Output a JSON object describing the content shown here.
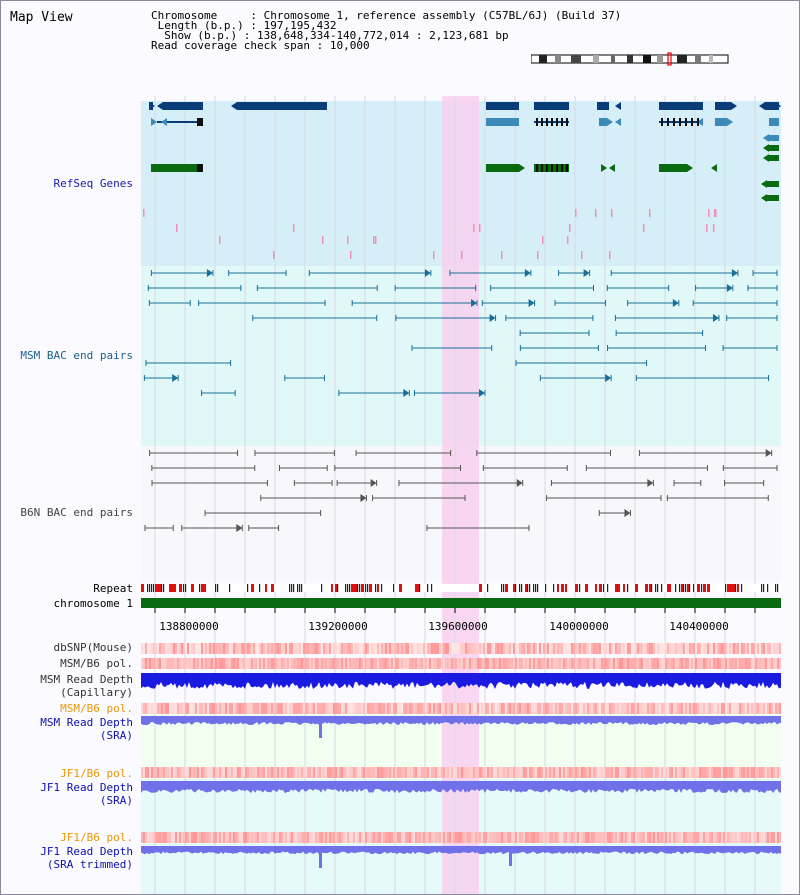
{
  "title": "Map View",
  "info": [
    {
      "key": "Chromosome     ",
      "value": "Chromosome 1, reference assembly (C57BL/6J) (Build 37)"
    },
    {
      "key": " Length (b.p.) ",
      "value": "197,195,432"
    },
    {
      "key": "  Show (b.p.) ",
      "value": "138,648,334-140,772,014 : 2,123,681 bp"
    },
    {
      "key": "Read coverage check span ",
      "value": "10,000"
    }
  ],
  "tracks": {
    "refseq": {
      "label": "RefSeq Genes",
      "color": "#1a1aa8"
    },
    "msm_bac": {
      "label": "MSM BAC end pairs",
      "color": "#1a5f8a"
    },
    "b6n_bac": {
      "label": "B6N BAC end pairs",
      "color": "#444444"
    },
    "repeat": {
      "label": "Repeat",
      "color": "#000000"
    },
    "chromosome": {
      "label": "chromosome 1",
      "color": "#000000"
    },
    "dbsnp": {
      "label": "dbSNP(Mouse)",
      "color": "#333333"
    },
    "msm_b6_pol": {
      "label": "MSM/B6 pol.",
      "color": "#333333"
    },
    "msm_depth_cap_1": {
      "label": "MSM Read Depth",
      "color": "#333333"
    },
    "msm_depth_cap_2": {
      "label": "(Capillary)",
      "color": "#333333"
    },
    "msm_b6_pol_sra": {
      "label": "MSM/B6 pol.",
      "color": "#e8980a"
    },
    "msm_depth_sra_1": {
      "label": "MSM Read Depth",
      "color": "#1010b0"
    },
    "msm_depth_sra_2": {
      "label": "(SRA)",
      "color": "#1010b0"
    },
    "jf1_b6_pol_1": {
      "label": "JF1/B6 pol.",
      "color": "#e8980a"
    },
    "jf1_depth_sra_1": {
      "label": "JF1 Read Depth",
      "color": "#1010b0"
    },
    "jf1_depth_sra_2": {
      "label": "(SRA)",
      "color": "#1010b0"
    },
    "jf1_b6_pol_2": {
      "label": "JF1/B6 pol.",
      "color": "#e8980a"
    },
    "jf1_depth_trim_1": {
      "label": "JF1 Read Depth",
      "color": "#1010b0"
    },
    "jf1_depth_trim_2": {
      "label": "(SRA trimmed)",
      "color": "#1010b0"
    }
  },
  "axis": {
    "ticks": [
      "138800000",
      "139200000",
      "139600000",
      "140000000",
      "140400000"
    ]
  },
  "colors": {
    "refseq_bg": "#d6eef8",
    "bac_bg": "#e0f8f8",
    "highlight": "#f8d0f0",
    "gene_dark": "#0a3d78",
    "gene_mid": "#3c8ab8",
    "gene_green": "#0a6a12",
    "chrom_green": "#0a6a12",
    "depth_cap": "#1a1ae0",
    "depth_sra": "#7070e8",
    "sra_bg": "#f0fff0",
    "jf1_bg": "#e6fafa"
  }
}
